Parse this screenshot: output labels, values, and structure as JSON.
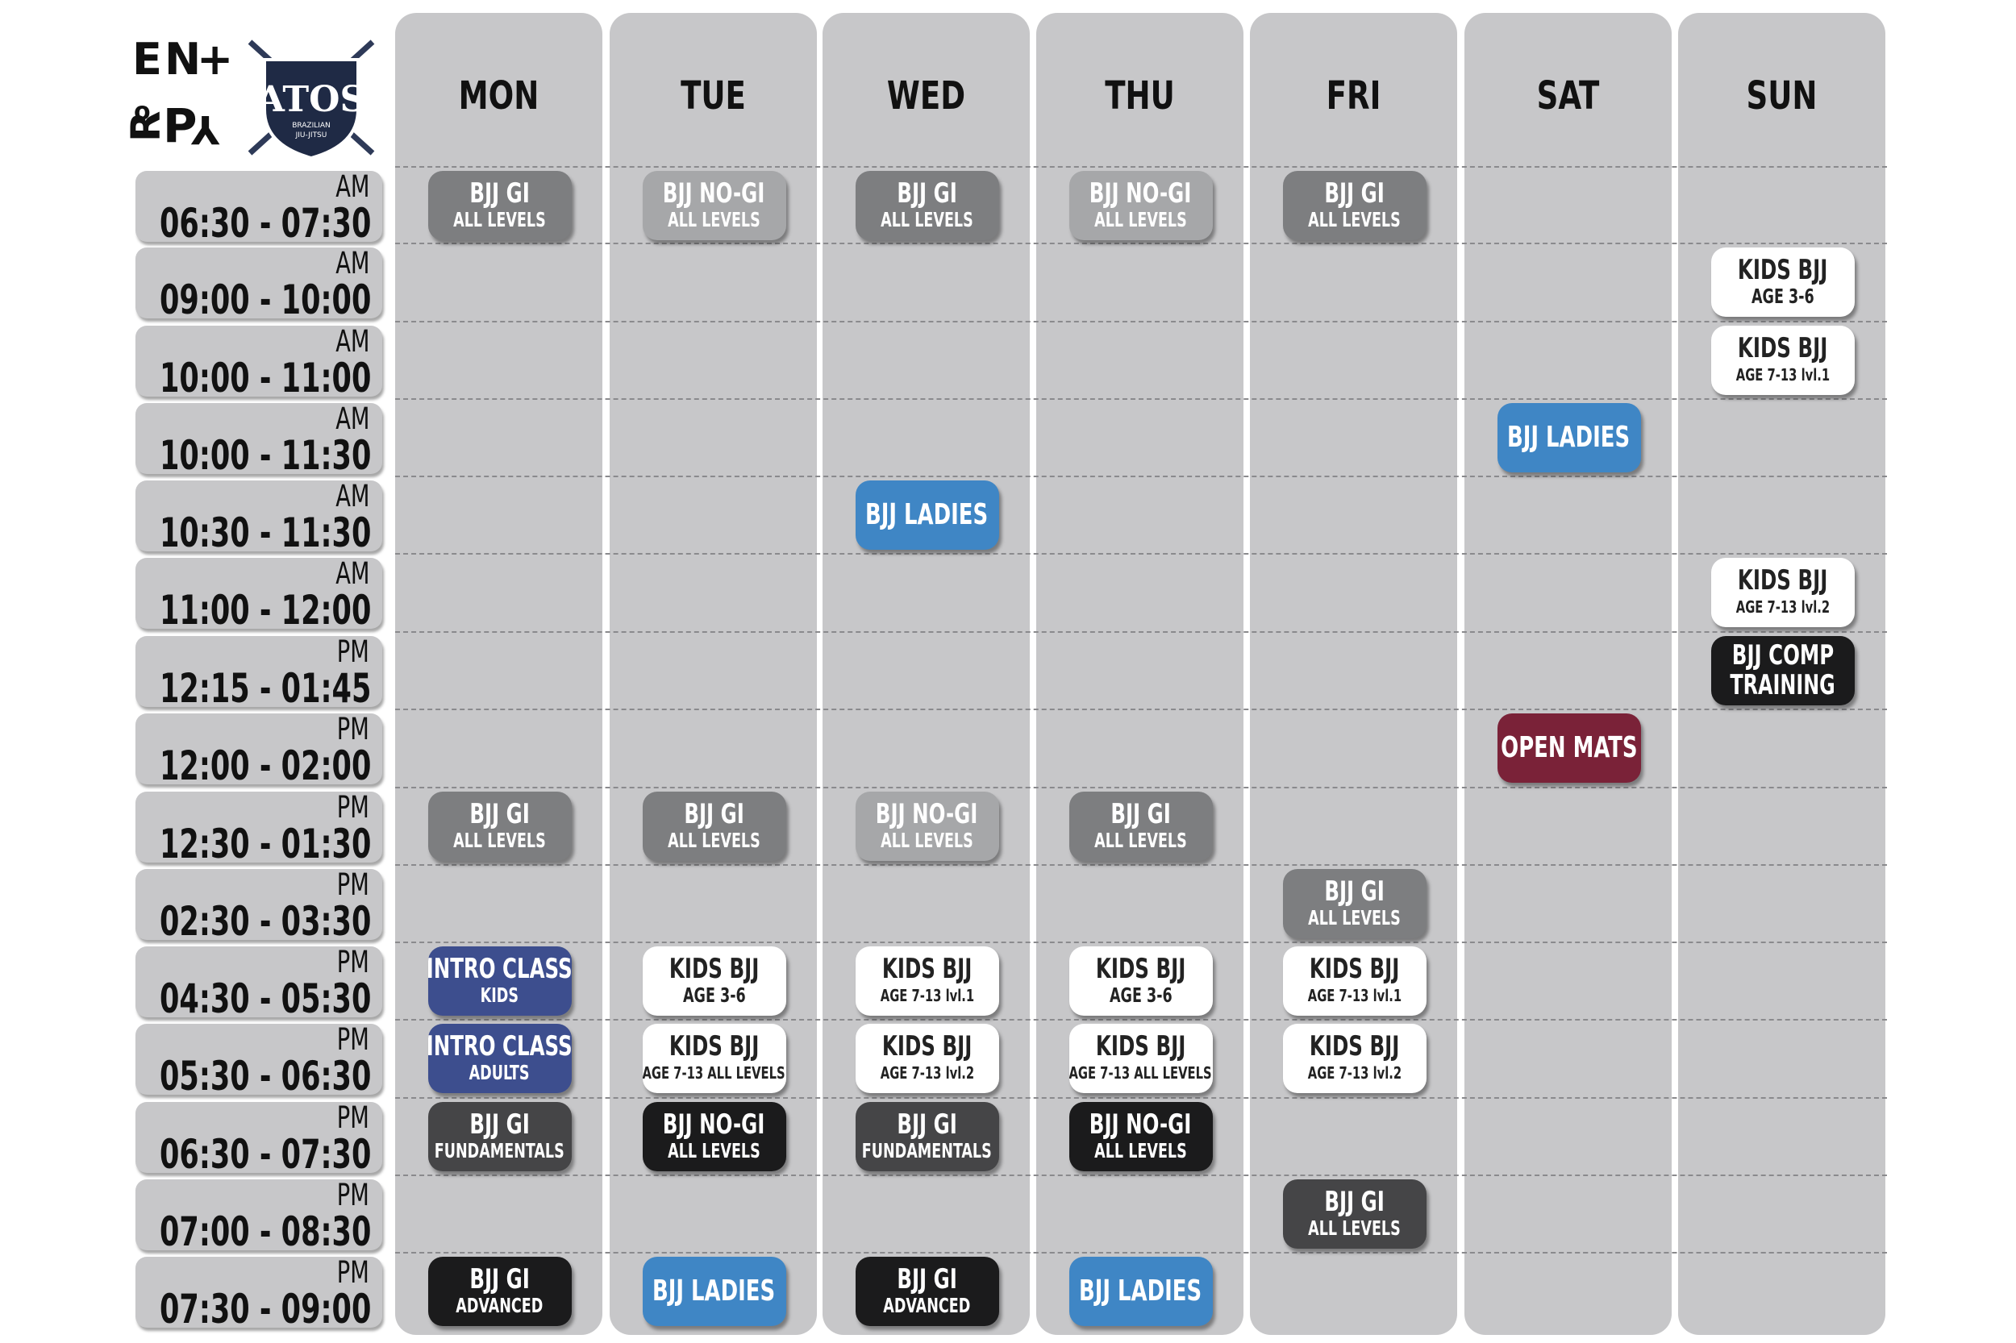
{
  "logo": {
    "entropy_letters": [
      "E",
      "N",
      "+",
      "R",
      "o",
      "P",
      "Y"
    ],
    "atos_text": "ATOS",
    "atos_sub": [
      "BRAZILIAN",
      "JIU-JITSU"
    ]
  },
  "days": [
    "MON",
    "TUE",
    "WED",
    "THU",
    "FRI",
    "SAT",
    "SUN"
  ],
  "time_slots": [
    {
      "ampm": "AM",
      "range": "06:30 - 07:30"
    },
    {
      "ampm": "AM",
      "range": "09:00 - 10:00"
    },
    {
      "ampm": "AM",
      "range": "10:00 - 11:00"
    },
    {
      "ampm": "AM",
      "range": "10:00 - 11:30"
    },
    {
      "ampm": "AM",
      "range": "10:30 - 11:30"
    },
    {
      "ampm": "AM",
      "range": "11:00 - 12:00"
    },
    {
      "ampm": "PM",
      "range": "12:15 - 01:45"
    },
    {
      "ampm": "PM",
      "range": "12:00 - 02:00"
    },
    {
      "ampm": "PM",
      "range": "12:30 - 01:30"
    },
    {
      "ampm": "PM",
      "range": "02:30 - 03:30"
    },
    {
      "ampm": "PM",
      "range": "04:30 - 05:30"
    },
    {
      "ampm": "PM",
      "range": "05:30 - 06:30"
    },
    {
      "ampm": "PM",
      "range": "06:30 - 07:30"
    },
    {
      "ampm": "PM",
      "range": "07:00 - 08:30"
    },
    {
      "ampm": "PM",
      "range": "07:30 - 09:00"
    }
  ],
  "classes": [
    {
      "day": 0,
      "slot": 0,
      "title": "BJJ GI",
      "sub": "ALL LEVELS",
      "color": "gray"
    },
    {
      "day": 1,
      "slot": 0,
      "title": "BJJ NO-GI",
      "sub": "ALL LEVELS",
      "color": "lgray"
    },
    {
      "day": 2,
      "slot": 0,
      "title": "BJJ GI",
      "sub": "ALL LEVELS",
      "color": "gray"
    },
    {
      "day": 3,
      "slot": 0,
      "title": "BJJ NO-GI",
      "sub": "ALL LEVELS",
      "color": "lgray"
    },
    {
      "day": 4,
      "slot": 0,
      "title": "BJJ GI",
      "sub": "ALL LEVELS",
      "color": "gray"
    },
    {
      "day": 6,
      "slot": 1,
      "title": "KIDS BJJ",
      "sub": "AGE 3-6",
      "color": "white"
    },
    {
      "day": 6,
      "slot": 2,
      "title": "KIDS BJJ",
      "sub": "AGE 7-13 lvl.1",
      "color": "white"
    },
    {
      "day": 5,
      "slot": 3,
      "title": "BJJ LADIES",
      "sub": "",
      "color": "blue"
    },
    {
      "day": 2,
      "slot": 4,
      "title": "BJJ LADIES",
      "sub": "",
      "color": "blue"
    },
    {
      "day": 6,
      "slot": 5,
      "title": "KIDS BJJ",
      "sub": "AGE 7-13 lvl.2",
      "color": "white"
    },
    {
      "day": 6,
      "slot": 6,
      "title": "BJJ COMP",
      "sub": "TRAINING",
      "color": "black"
    },
    {
      "day": 5,
      "slot": 7,
      "title": "OPEN MATS",
      "sub": "",
      "color": "maroon"
    },
    {
      "day": 0,
      "slot": 8,
      "title": "BJJ GI",
      "sub": "ALL LEVELS",
      "color": "gray"
    },
    {
      "day": 1,
      "slot": 8,
      "title": "BJJ GI",
      "sub": "ALL LEVELS",
      "color": "gray"
    },
    {
      "day": 2,
      "slot": 8,
      "title": "BJJ NO-GI",
      "sub": "ALL LEVELS",
      "color": "lgray"
    },
    {
      "day": 3,
      "slot": 8,
      "title": "BJJ GI",
      "sub": "ALL LEVELS",
      "color": "gray"
    },
    {
      "day": 4,
      "slot": 9,
      "title": "BJJ GI",
      "sub": "ALL LEVELS",
      "color": "gray"
    },
    {
      "day": 0,
      "slot": 10,
      "title": "INTRO CLASS",
      "sub": "KIDS",
      "color": "navy"
    },
    {
      "day": 1,
      "slot": 10,
      "title": "KIDS BJJ",
      "sub": "AGE 3-6",
      "color": "white"
    },
    {
      "day": 2,
      "slot": 10,
      "title": "KIDS BJJ",
      "sub": "AGE 7-13 lvl.1",
      "color": "white"
    },
    {
      "day": 3,
      "slot": 10,
      "title": "KIDS BJJ",
      "sub": "AGE 3-6",
      "color": "white"
    },
    {
      "day": 4,
      "slot": 10,
      "title": "KIDS BJJ",
      "sub": "AGE 7-13 lvl.1",
      "color": "white"
    },
    {
      "day": 0,
      "slot": 11,
      "title": "INTRO CLASS",
      "sub": "ADULTS",
      "color": "navy"
    },
    {
      "day": 1,
      "slot": 11,
      "title": "KIDS BJJ",
      "sub": "AGE 7-13 ALL LEVELS",
      "color": "white"
    },
    {
      "day": 2,
      "slot": 11,
      "title": "KIDS BJJ",
      "sub": "AGE 7-13 lvl.2",
      "color": "white"
    },
    {
      "day": 3,
      "slot": 11,
      "title": "KIDS BJJ",
      "sub": "AGE 7-13 ALL LEVELS",
      "color": "white"
    },
    {
      "day": 4,
      "slot": 11,
      "title": "KIDS BJJ",
      "sub": "AGE 7-13 lvl.2",
      "color": "white"
    },
    {
      "day": 0,
      "slot": 12,
      "title": "BJJ GI",
      "sub": "FUNDAMENTALS",
      "color": "dgray"
    },
    {
      "day": 1,
      "slot": 12,
      "title": "BJJ NO-GI",
      "sub": "ALL LEVELS",
      "color": "black"
    },
    {
      "day": 2,
      "slot": 12,
      "title": "BJJ GI",
      "sub": "FUNDAMENTALS",
      "color": "dgray"
    },
    {
      "day": 3,
      "slot": 12,
      "title": "BJJ NO-GI",
      "sub": "ALL LEVELS",
      "color": "black"
    },
    {
      "day": 4,
      "slot": 13,
      "title": "BJJ GI",
      "sub": "ALL LEVELS",
      "color": "dgray"
    },
    {
      "day": 0,
      "slot": 14,
      "title": "BJJ GI",
      "sub": "ADVANCED",
      "color": "black"
    },
    {
      "day": 1,
      "slot": 14,
      "title": "BJJ LADIES",
      "sub": "",
      "color": "blue"
    },
    {
      "day": 2,
      "slot": 14,
      "title": "BJJ GI",
      "sub": "ADVANCED",
      "color": "black"
    },
    {
      "day": 3,
      "slot": 14,
      "title": "BJJ LADIES",
      "sub": "",
      "color": "blue"
    }
  ],
  "colors": {
    "column_bg": "#c7c7c9",
    "gray": "#7d7e80",
    "light_gray": "#a6a7a9",
    "dark_gray": "#454547",
    "black": "#1b1b1c",
    "white": "#ffffff",
    "blue": "#3f86c5",
    "navy": "#3d4e8e",
    "maroon": "#7a2238"
  }
}
